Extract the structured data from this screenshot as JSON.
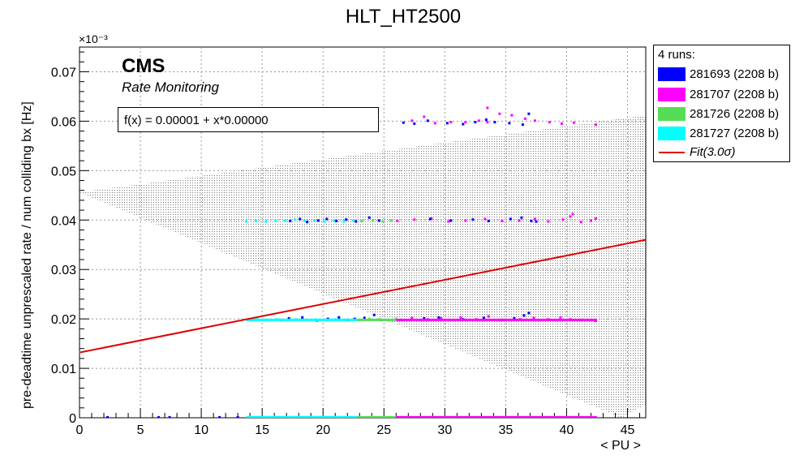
{
  "chart_data": {
    "type": "scatter",
    "title": "HLT_HT2500",
    "xlabel": "< PU >",
    "ylabel": "pre-deadtime unprescaled rate / num colliding bx [Hz]",
    "y_exponent_label": "×10⁻³",
    "xlim": [
      0,
      46.5
    ],
    "ylim": [
      0,
      0.075
    ],
    "x_ticks": [
      0,
      5,
      10,
      15,
      20,
      25,
      30,
      35,
      40,
      45
    ],
    "y_ticks": [
      0,
      0.01,
      0.02,
      0.03,
      0.04,
      0.05,
      0.06,
      0.07
    ],
    "x_tick_labels": [
      "0",
      "5",
      "10",
      "15",
      "20",
      "25",
      "30",
      "35",
      "40",
      "45"
    ],
    "y_tick_labels": [
      "0",
      "0.01",
      "0.02",
      "0.03",
      "0.04",
      "0.05",
      "0.06",
      "0.07"
    ],
    "grid": true,
    "legend_position": "outside top-right",
    "legend_header": "4 runs:",
    "series": [
      {
        "name": "281693 (2208 b)",
        "color": "#0000ff",
        "points": [
          [
            2.3,
            0.0001
          ],
          [
            6.5,
            0.0001
          ],
          [
            7.4,
            0.0001
          ],
          [
            11.5,
            0.0001
          ],
          [
            13.0,
            0.0001
          ],
          [
            16.5,
            0.0198
          ],
          [
            17.2,
            0.0201
          ],
          [
            18.3,
            0.0203
          ],
          [
            19.5,
            0.0197
          ],
          [
            20.4,
            0.02
          ],
          [
            21.3,
            0.0203
          ],
          [
            22.0,
            0.0198
          ],
          [
            22.6,
            0.02
          ],
          [
            23.4,
            0.0202
          ],
          [
            24.2,
            0.0208
          ],
          [
            24.8,
            0.0198
          ],
          [
            17.3,
            0.0398
          ],
          [
            18.1,
            0.0402
          ],
          [
            18.7,
            0.0396
          ],
          [
            19.6,
            0.0399
          ],
          [
            20.3,
            0.0402
          ],
          [
            21.1,
            0.0398
          ],
          [
            21.9,
            0.0401
          ],
          [
            22.7,
            0.0397
          ],
          [
            23.8,
            0.0405
          ],
          [
            24.6,
            0.0399
          ],
          [
            28.3,
            0.0201
          ],
          [
            29.5,
            0.0203
          ],
          [
            31.5,
            0.0199
          ],
          [
            33.2,
            0.0202
          ],
          [
            34.6,
            0.0198
          ],
          [
            35.7,
            0.0201
          ],
          [
            36.5,
            0.0207
          ],
          [
            36.9,
            0.0212
          ],
          [
            28.8,
            0.0402
          ],
          [
            30.5,
            0.0399
          ],
          [
            32.3,
            0.0401
          ],
          [
            33.6,
            0.0398
          ],
          [
            35.4,
            0.0402
          ],
          [
            36.3,
            0.0405
          ],
          [
            37.1,
            0.0398
          ],
          [
            37.5,
            0.0397
          ],
          [
            26.6,
            0.0597
          ],
          [
            27.5,
            0.0595
          ],
          [
            28.6,
            0.0601
          ],
          [
            30.2,
            0.0596
          ],
          [
            31.5,
            0.0594
          ],
          [
            32.5,
            0.0598
          ],
          [
            33.4,
            0.0603
          ],
          [
            34.1,
            0.0598
          ],
          [
            35.3,
            0.0596
          ],
          [
            36.4,
            0.0593
          ],
          [
            36.9,
            0.0615
          ]
        ]
      },
      {
        "name": "281707 (2208 b)",
        "color": "#ff00ff",
        "points": [
          [
            26.5,
            0.0001
          ],
          [
            30.0,
            0.0001
          ],
          [
            34.0,
            0.0001
          ],
          [
            38.0,
            0.0001
          ],
          [
            42.0,
            0.0001
          ],
          [
            26.4,
            0.0198
          ],
          [
            27.3,
            0.0202
          ],
          [
            28.6,
            0.0199
          ],
          [
            29.7,
            0.0201
          ],
          [
            31.3,
            0.0203
          ],
          [
            32.6,
            0.0199
          ],
          [
            33.6,
            0.0205
          ],
          [
            34.9,
            0.0198
          ],
          [
            36.2,
            0.0199
          ],
          [
            37.3,
            0.0202
          ],
          [
            38.5,
            0.0199
          ],
          [
            39.5,
            0.0203
          ],
          [
            40.3,
            0.0199
          ],
          [
            41.2,
            0.0198
          ],
          [
            42.4,
            0.0196
          ],
          [
            26.1,
            0.0398
          ],
          [
            27.5,
            0.0401
          ],
          [
            28.9,
            0.0403
          ],
          [
            30.3,
            0.0397
          ],
          [
            31.7,
            0.0399
          ],
          [
            33.3,
            0.0402
          ],
          [
            34.7,
            0.0398
          ],
          [
            36.1,
            0.0399
          ],
          [
            37.4,
            0.0402
          ],
          [
            38.5,
            0.0397
          ],
          [
            39.7,
            0.0401
          ],
          [
            40.3,
            0.0407
          ],
          [
            40.5,
            0.0412
          ],
          [
            41.2,
            0.0396
          ],
          [
            42.0,
            0.0399
          ],
          [
            42.4,
            0.0403
          ],
          [
            27.3,
            0.0601
          ],
          [
            28.3,
            0.0609
          ],
          [
            29.2,
            0.0596
          ],
          [
            30.5,
            0.0598
          ],
          [
            31.7,
            0.0598
          ],
          [
            32.8,
            0.0601
          ],
          [
            33.5,
            0.0598
          ],
          [
            34.5,
            0.0615
          ],
          [
            35.5,
            0.0612
          ],
          [
            36.6,
            0.0605
          ],
          [
            37.4,
            0.0601
          ],
          [
            38.6,
            0.0598
          ],
          [
            39.6,
            0.0595
          ],
          [
            40.6,
            0.0597
          ],
          [
            42.4,
            0.0593
          ],
          [
            33.5,
            0.0627
          ]
        ]
      },
      {
        "name": "281726 (2208 b)",
        "color": "#55dd55",
        "points": [
          [
            22.5,
            0.0001
          ],
          [
            24.0,
            0.0001
          ],
          [
            25.5,
            0.0001
          ],
          [
            23.0,
            0.0198
          ],
          [
            23.8,
            0.02
          ],
          [
            24.6,
            0.0199
          ],
          [
            25.4,
            0.0197
          ],
          [
            26.0,
            0.02
          ],
          [
            23.2,
            0.0398
          ],
          [
            24.1,
            0.04
          ],
          [
            24.9,
            0.0397
          ],
          [
            25.6,
            0.0399
          ]
        ]
      },
      {
        "name": "281727 (2208 b)",
        "color": "#00ffff",
        "points": [
          [
            14.0,
            0.0001
          ],
          [
            16.0,
            0.0001
          ],
          [
            18.0,
            0.0001
          ],
          [
            20.0,
            0.0001
          ],
          [
            22.0,
            0.0001
          ],
          [
            13.8,
            0.0198
          ],
          [
            14.6,
            0.0199
          ],
          [
            15.4,
            0.0198
          ],
          [
            16.2,
            0.0199
          ],
          [
            17.0,
            0.0198
          ],
          [
            17.8,
            0.0199
          ],
          [
            18.6,
            0.0198
          ],
          [
            19.4,
            0.0199
          ],
          [
            20.2,
            0.0198
          ],
          [
            21.0,
            0.0199
          ],
          [
            21.8,
            0.0198
          ],
          [
            22.6,
            0.0199
          ],
          [
            13.7,
            0.0397
          ],
          [
            14.5,
            0.0398
          ],
          [
            15.3,
            0.0397
          ],
          [
            16.1,
            0.0398
          ],
          [
            16.9,
            0.0398
          ],
          [
            17.7,
            0.0401
          ],
          [
            18.5,
            0.0398
          ],
          [
            19.3,
            0.0399
          ],
          [
            20.1,
            0.0397
          ],
          [
            20.9,
            0.0398
          ],
          [
            21.7,
            0.0397
          ],
          [
            22.5,
            0.0399
          ]
        ]
      }
    ],
    "fit": {
      "label": "Fit(3.0σ)",
      "color": "#dd0000",
      "line": [
        [
          0,
          0.0132
        ],
        [
          46.5,
          0.036
        ]
      ],
      "band": [
        [
          0,
          0.0456
        ],
        [
          46.5,
          0.0612
        ],
        [
          46.5,
          0.0026
        ],
        [
          44.5,
          0.0
        ]
      ]
    }
  },
  "annotations": {
    "cms": "CMS",
    "rate_monitoring": "Rate Monitoring",
    "fit_formula": "f(x) = 0.00001 + x*0.00000"
  }
}
